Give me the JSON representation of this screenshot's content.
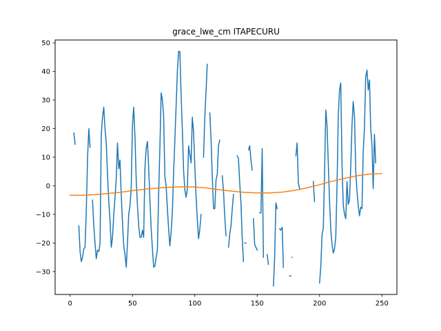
{
  "chart_data": {
    "type": "line",
    "title": "grace_lwe_cm ITAPECURU",
    "xlabel": "",
    "ylabel": "",
    "xlim": [
      -12,
      262
    ],
    "ylim": [
      -38,
      51
    ],
    "xticks": [
      0,
      50,
      100,
      150,
      200,
      250
    ],
    "yticks": [
      -30,
      -20,
      -10,
      0,
      10,
      20,
      30,
      40,
      50
    ],
    "grid": false,
    "series": [
      {
        "color": "#1f77b4",
        "segments": [
          [
            [
              3,
              18.5
            ],
            [
              4,
              14.5
            ]
          ],
          [
            [
              7,
              -14
            ],
            [
              8,
              -23
            ],
            [
              9,
              -26.5
            ],
            [
              10,
              -25
            ],
            [
              11,
              -22
            ],
            [
              12,
              -21.5
            ],
            [
              13,
              -8
            ],
            [
              14,
              10
            ],
            [
              15,
              20
            ],
            [
              16,
              13.5
            ]
          ],
          [
            [
              18,
              -5
            ],
            [
              19,
              -14
            ],
            [
              20,
              -20
            ],
            [
              21,
              -25.5
            ],
            [
              22,
              -22.5
            ],
            [
              23,
              -23
            ],
            [
              24,
              -20
            ],
            [
              25,
              18
            ],
            [
              26,
              24
            ],
            [
              27,
              27.5
            ],
            [
              28,
              20
            ],
            [
              29,
              15
            ],
            [
              30,
              4
            ],
            [
              31,
              -5
            ],
            [
              32,
              -12
            ],
            [
              33,
              -21.5
            ],
            [
              34,
              -18
            ],
            [
              35,
              -10
            ],
            [
              36,
              -4
            ],
            [
              37,
              2.5
            ],
            [
              38,
              15
            ],
            [
              39,
              6
            ],
            [
              40,
              9
            ],
            [
              41,
              -3
            ],
            [
              42,
              -13
            ],
            [
              43,
              -21
            ],
            [
              44,
              -24
            ],
            [
              45,
              -28.5
            ],
            [
              46,
              -20
            ],
            [
              47,
              -10
            ],
            [
              48,
              -7
            ],
            [
              49,
              -1
            ],
            [
              50,
              21
            ],
            [
              51,
              27.5
            ],
            [
              52,
              17
            ],
            [
              53,
              2
            ],
            [
              54,
              -7
            ],
            [
              55,
              -14
            ],
            [
              56,
              -18
            ],
            [
              57,
              -18
            ],
            [
              58,
              -15.5
            ],
            [
              59,
              -18
            ],
            [
              60,
              6
            ],
            [
              61,
              13
            ],
            [
              62,
              15.5
            ],
            [
              63,
              6
            ],
            [
              64,
              -5
            ],
            [
              65,
              -15
            ],
            [
              66,
              -22
            ],
            [
              67,
              -28.5
            ],
            [
              68,
              -28
            ],
            [
              69,
              -25
            ],
            [
              70,
              -22.5
            ],
            [
              71,
              -3
            ],
            [
              72,
              14
            ],
            [
              73,
              32.5
            ],
            [
              74,
              30
            ],
            [
              75,
              24
            ],
            [
              76,
              3
            ],
            [
              77,
              0
            ],
            [
              78,
              -8
            ],
            [
              79,
              -15
            ],
            [
              80,
              -21
            ],
            [
              81,
              -16
            ],
            [
              82,
              -9
            ],
            [
              83,
              5
            ],
            [
              84,
              16
            ],
            [
              85,
              28
            ],
            [
              86,
              40
            ],
            [
              87,
              47
            ],
            [
              88,
              47
            ],
            [
              89,
              32
            ],
            [
              90,
              20
            ],
            [
              91,
              5
            ],
            [
              92,
              -1.5
            ],
            [
              93,
              -4
            ],
            [
              94,
              -1
            ],
            [
              95,
              14
            ],
            [
              96,
              11
            ],
            [
              97,
              8
            ],
            [
              98,
              24
            ],
            [
              99,
              19
            ],
            [
              100,
              7
            ],
            [
              101,
              -4
            ],
            [
              102,
              -12
            ],
            [
              103,
              -18.5
            ],
            [
              104,
              -15
            ],
            [
              105,
              -10
            ]
          ],
          [
            [
              107,
              10
            ],
            [
              108,
              24
            ],
            [
              109,
              33
            ],
            [
              110,
              42.5
            ]
          ],
          [
            [
              112,
              25.5
            ],
            [
              113,
              16
            ],
            [
              114,
              3
            ],
            [
              115,
              -8
            ],
            [
              116,
              -8
            ],
            [
              117,
              2
            ],
            [
              118,
              4
            ],
            [
              119,
              14
            ],
            [
              120,
              16
            ]
          ],
          [
            [
              122,
              3.5
            ],
            [
              123,
              -2
            ],
            [
              124,
              -11
            ],
            [
              125,
              -17.5
            ]
          ],
          [
            [
              127,
              -21.5
            ],
            [
              128,
              -17
            ],
            [
              129,
              -14
            ],
            [
              130,
              -8
            ],
            [
              131,
              -3
            ]
          ],
          [
            [
              134,
              10.5
            ],
            [
              135,
              9.5
            ],
            [
              136,
              1
            ],
            [
              137,
              -6
            ],
            [
              138,
              -18
            ],
            [
              139,
              -26.5
            ]
          ],
          [
            [
              140,
              -20
            ],
            [
              141,
              -20
            ]
          ],
          [
            [
              143,
              12.5
            ],
            [
              144,
              14
            ],
            [
              145,
              9
            ],
            [
              146,
              5.5
            ]
          ],
          [
            [
              147,
              -11.5
            ],
            [
              148,
              -20.5
            ],
            [
              149,
              -21.5
            ],
            [
              150,
              -22.5
            ]
          ],
          [
            [
              152,
              -9.5
            ],
            [
              153,
              -9.5
            ],
            [
              154,
              13
            ],
            [
              155,
              -25
            ]
          ],
          [
            [
              158,
              -24
            ],
            [
              159,
              -27.5
            ]
          ],
          [
            [
              163,
              -35
            ],
            [
              164,
              -25
            ],
            [
              165,
              -6
            ],
            [
              166,
              -8
            ]
          ],
          [
            [
              168,
              -15
            ],
            [
              169,
              -15.5
            ],
            [
              170,
              -14.5
            ],
            [
              171,
              -28.5
            ]
          ],
          [
            [
              176,
              -31.5
            ],
            [
              177,
              -31.5
            ]
          ],
          [
            [
              178,
              -25
            ]
          ],
          [
            [
              181,
              10.5
            ],
            [
              182,
              15
            ],
            [
              183,
              1
            ],
            [
              184,
              -1
            ]
          ],
          [
            [
              195,
              1.5
            ],
            [
              196,
              -5.5
            ]
          ],
          [
            [
              200,
              -34
            ],
            [
              201,
              -28
            ],
            [
              202,
              -17
            ],
            [
              203,
              -15
            ],
            [
              204,
              4
            ],
            [
              205,
              26.5
            ],
            [
              206,
              21
            ],
            [
              207,
              8
            ],
            [
              208,
              -5
            ],
            [
              209,
              -15.5
            ],
            [
              210,
              -20.5
            ],
            [
              211,
              -23.5
            ],
            [
              212,
              -22
            ],
            [
              213,
              -18
            ],
            [
              214,
              0
            ],
            [
              215,
              24
            ],
            [
              216,
              33.5
            ],
            [
              217,
              36
            ],
            [
              218,
              7
            ],
            [
              219,
              -7
            ],
            [
              220,
              -10
            ],
            [
              221,
              -11.5
            ],
            [
              222,
              1.5
            ],
            [
              223,
              -6.5
            ],
            [
              224,
              -5
            ],
            [
              225,
              6.5
            ],
            [
              226,
              21
            ],
            [
              227,
              29.5
            ],
            [
              228,
              24
            ],
            [
              229,
              5
            ],
            [
              230,
              -2
            ],
            [
              231,
              -7
            ],
            [
              232,
              -10.5
            ],
            [
              233,
              -7.5
            ],
            [
              234,
              -8
            ],
            [
              235,
              12
            ],
            [
              236,
              20
            ],
            [
              237,
              38
            ],
            [
              238,
              40.5
            ],
            [
              239,
              33.5
            ],
            [
              240,
              37
            ],
            [
              241,
              20
            ],
            [
              242,
              14.5
            ],
            [
              243,
              -1
            ],
            [
              244,
              18
            ],
            [
              245,
              8
            ]
          ]
        ]
      },
      {
        "color": "#ff7f0e",
        "segments": [
          [
            [
              0,
              -3.3
            ],
            [
              10,
              -3.3
            ],
            [
              20,
              -3.1
            ],
            [
              30,
              -2.7
            ],
            [
              40,
              -2.3
            ],
            [
              50,
              -1.7
            ],
            [
              60,
              -1.2
            ],
            [
              70,
              -0.8
            ],
            [
              80,
              -0.5
            ],
            [
              90,
              -0.3
            ],
            [
              100,
              -0.4
            ],
            [
              110,
              -0.8
            ],
            [
              120,
              -1.4
            ],
            [
              130,
              -1.9
            ],
            [
              140,
              -2.3
            ],
            [
              150,
              -2.5
            ],
            [
              160,
              -2.5
            ],
            [
              170,
              -2.2
            ],
            [
              180,
              -1.6
            ],
            [
              190,
              -0.7
            ],
            [
              200,
              0.4
            ],
            [
              210,
              1.6
            ],
            [
              220,
              2.6
            ],
            [
              230,
              3.5
            ],
            [
              240,
              4.1
            ],
            [
              250,
              4.3
            ]
          ]
        ]
      }
    ]
  }
}
